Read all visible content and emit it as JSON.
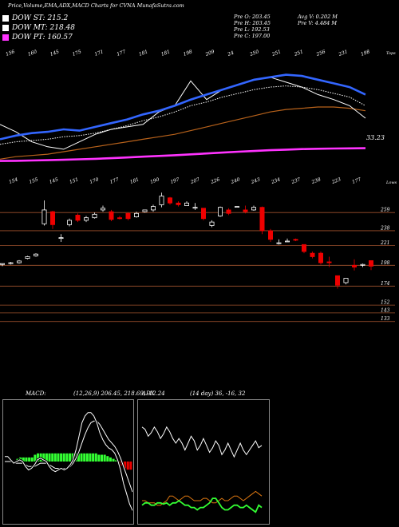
{
  "header": {
    "title": "Price,Volume,EMA,ADX,MACD Charts for CVNA MunafaSutra.com"
  },
  "legend": [
    {
      "label": "DOW ST: 215.2",
      "color": "#ffffff"
    },
    {
      "label": "DOW MT: 218.48",
      "color": "#ffffff"
    },
    {
      "label": "DOW PT: 160.57",
      "color": "#ff33ff"
    }
  ],
  "info": {
    "col1": [
      "Pre O: 203.45",
      "Pre H: 203.45",
      "Pre L: 192.53",
      "Pre C: 197.00"
    ],
    "col2": [
      "Avg V: 0.202 M",
      "Pre V: 4.484 M"
    ]
  },
  "colors": {
    "ema_short": "#3366ff",
    "ema_mid": "#ffffff",
    "ema_long": "#ff33ff",
    "ema_brown": "#b8621b",
    "up_candle": "#ffffff",
    "down_candle": "#ee0000",
    "level_line": "#a0522d",
    "macd_bar": "#33ff33",
    "adx_white": "#ffffff",
    "adx_green": "#33ff33",
    "adx_orange": "#dd7711"
  },
  "chart_data": [
    {
      "type": "line",
      "name": "ema-panel",
      "top_labels": [
        "156",
        "160",
        "145",
        "175",
        "171",
        "177",
        "181",
        "181",
        "198",
        "209",
        "24",
        "250",
        "251",
        "251",
        "256",
        "231",
        "198"
      ],
      "top_right_label": "Tops",
      "bottom_labels": [
        "154",
        "155",
        "145",
        "151",
        "170",
        "177",
        "181",
        "190",
        "197",
        "207",
        "226",
        "240",
        "243",
        "234",
        "237",
        "238",
        "223",
        "177"
      ],
      "bottom_right_label": "Lows",
      "last_value_label": "33.23",
      "series": [
        {
          "key": "blue",
          "values": [
            178,
            181,
            183,
            184,
            186,
            185,
            188,
            191,
            194,
            198,
            201,
            205,
            210,
            214,
            218,
            222,
            226,
            228,
            230,
            229,
            226,
            223,
            220,
            214
          ]
        },
        {
          "key": "white_dotted",
          "values": [
            174,
            176,
            177,
            178,
            180,
            181,
            183,
            186,
            189,
            193,
            196,
            200,
            205,
            208,
            212,
            215,
            218,
            220,
            221,
            220,
            218,
            215,
            212,
            205
          ]
        },
        {
          "key": "white",
          "values": [
            190,
            184,
            176,
            172,
            170,
            176,
            182,
            186,
            188,
            190,
            200,
            205,
            225,
            210,
            218,
            222,
            226,
            228,
            224,
            220,
            214,
            210,
            205,
            195
          ]
        },
        {
          "key": "brown",
          "values": [
            162,
            164,
            165,
            166,
            168,
            170,
            172,
            174,
            176,
            178,
            180,
            182,
            185,
            188,
            191,
            194,
            197,
            200,
            202,
            203,
            204,
            204,
            203,
            201
          ]
        },
        {
          "key": "magenta",
          "values": [
            160.57,
            160.7,
            160.9,
            161.2,
            161.5,
            161.9,
            162.3,
            162.8,
            163.4,
            164.0,
            164.6,
            165.2,
            165.9,
            166.6,
            167.3,
            168.0,
            168.6,
            169.2,
            169.7,
            170.1,
            170.4,
            170.6,
            170.7,
            170.8
          ]
        }
      ],
      "ylim": [
        150,
        240
      ]
    },
    {
      "type": "candlestick",
      "name": "price-panel",
      "levels": [
        259,
        238,
        221,
        198,
        174,
        152,
        143,
        133
      ],
      "candles": [
        {
          "o": 199,
          "c": 200,
          "h": 200,
          "l": 197
        },
        {
          "o": 200,
          "c": 201,
          "h": 202,
          "l": 199
        },
        {
          "o": 201,
          "c": 203,
          "h": 204,
          "l": 200
        },
        {
          "o": 206,
          "c": 208,
          "h": 209,
          "l": 205
        },
        {
          "o": 209,
          "c": 211,
          "h": 212,
          "l": 208
        },
        {
          "o": 246,
          "c": 262,
          "h": 273,
          "l": 244
        },
        {
          "o": 260,
          "c": 245,
          "h": 261,
          "l": 240
        },
        {
          "o": 230,
          "c": 230,
          "h": 234,
          "l": 225
        },
        {
          "o": 245,
          "c": 250,
          "h": 252,
          "l": 243
        },
        {
          "o": 256,
          "c": 250,
          "h": 258,
          "l": 248
        },
        {
          "o": 250,
          "c": 253,
          "h": 255,
          "l": 248
        },
        {
          "o": 253,
          "c": 257,
          "h": 259,
          "l": 252
        },
        {
          "o": 262,
          "c": 264,
          "h": 267,
          "l": 260
        },
        {
          "o": 260,
          "c": 251,
          "h": 262,
          "l": 249
        },
        {
          "o": 253,
          "c": 252,
          "h": 255,
          "l": 251
        },
        {
          "o": 258,
          "c": 252,
          "h": 259,
          "l": 250
        },
        {
          "o": 254,
          "c": 258,
          "h": 260,
          "l": 253
        },
        {
          "o": 260,
          "c": 262,
          "h": 262,
          "l": 259
        },
        {
          "o": 262,
          "c": 266,
          "h": 268,
          "l": 260
        },
        {
          "o": 268,
          "c": 278,
          "h": 282,
          "l": 265
        },
        {
          "o": 276,
          "c": 270,
          "h": 277,
          "l": 268
        },
        {
          "o": 270,
          "c": 268,
          "h": 272,
          "l": 266
        },
        {
          "o": 267,
          "c": 270,
          "h": 272,
          "l": 267
        },
        {
          "o": 265,
          "c": 265,
          "h": 270,
          "l": 262
        },
        {
          "o": 264,
          "c": 252,
          "h": 264,
          "l": 250
        },
        {
          "o": 244,
          "c": 248,
          "h": 250,
          "l": 242
        },
        {
          "o": 255,
          "c": 265,
          "h": 266,
          "l": 254
        },
        {
          "o": 262,
          "c": 258,
          "h": 264,
          "l": 256
        },
        {
          "o": 266,
          "c": 266,
          "h": 266,
          "l": 266
        },
        {
          "o": 262,
          "c": 260,
          "h": 267,
          "l": 258
        },
        {
          "o": 262,
          "c": 265,
          "h": 267,
          "l": 261
        },
        {
          "o": 265,
          "c": 238,
          "h": 266,
          "l": 234
        },
        {
          "o": 238,
          "c": 228,
          "h": 240,
          "l": 225
        },
        {
          "o": 224,
          "c": 224,
          "h": 228,
          "l": 222
        },
        {
          "o": 226,
          "c": 226,
          "h": 229,
          "l": 225
        },
        {
          "o": 228,
          "c": 227,
          "h": 229,
          "l": 226
        },
        {
          "o": 222,
          "c": 214,
          "h": 222,
          "l": 212
        },
        {
          "o": 212,
          "c": 208,
          "h": 214,
          "l": 206
        },
        {
          "o": 212,
          "c": 201,
          "h": 214,
          "l": 199
        },
        {
          "o": 202,
          "c": 201,
          "h": 208,
          "l": 196
        },
        {
          "o": 186,
          "c": 175,
          "h": 186,
          "l": 171
        },
        {
          "o": 178,
          "c": 183,
          "h": 183,
          "l": 176
        },
        {
          "o": 198,
          "c": 196,
          "h": 205,
          "l": 192
        },
        {
          "o": 198,
          "c": 199,
          "h": 200,
          "l": 196
        },
        {
          "o": 203.45,
          "c": 197.0,
          "h": 203.45,
          "l": 192.53
        }
      ],
      "ylim": [
        130,
        285
      ]
    },
    {
      "type": "bar",
      "name": "macd-panel",
      "label": "MACD:",
      "values_text": "(12,26,9) 206.45, 218.69, -12.24",
      "histogram": [
        0,
        0,
        0,
        0,
        2,
        3,
        3,
        3,
        3,
        3,
        5,
        6,
        6,
        6,
        6,
        6,
        6,
        6,
        6,
        6,
        6,
        6,
        6,
        6,
        6,
        6,
        6,
        6,
        6,
        6,
        6,
        6,
        5,
        5,
        5,
        4,
        3,
        2,
        1,
        -1,
        -3,
        -5,
        -6,
        -6
      ],
      "macd": [
        88,
        88,
        86,
        84,
        85,
        86,
        85,
        82,
        80,
        81,
        83,
        86,
        87,
        86,
        85,
        82,
        80,
        79,
        80,
        81,
        80,
        81,
        83,
        86,
        92,
        100,
        108,
        112,
        114,
        114,
        112,
        108,
        102,
        98,
        95,
        93,
        92,
        90,
        86,
        80,
        72,
        66,
        60,
        56
      ],
      "signal": [
        85,
        85,
        85,
        84,
        84,
        84,
        84,
        83,
        82,
        82,
        82,
        83,
        84,
        84,
        84,
        83,
        82,
        81,
        81,
        81,
        81,
        81,
        82,
        84,
        87,
        91,
        96,
        101,
        105,
        108,
        109,
        109,
        107,
        104,
        101,
        98,
        96,
        94,
        91,
        87,
        82,
        77,
        72,
        67
      ],
      "ylim": [
        50,
        120
      ]
    },
    {
      "type": "line",
      "name": "adx-panel",
      "label": "ADX",
      "values_text": "(14 day) 36, -16, 32",
      "series": [
        {
          "key": "white",
          "values": [
            20,
            22,
            28,
            25,
            20,
            24,
            30,
            26,
            20,
            24,
            30,
            34,
            30,
            34,
            40,
            34,
            28,
            32,
            40,
            36,
            30,
            36,
            42,
            38,
            32,
            36,
            44,
            40,
            34,
            40,
            46,
            40,
            34,
            40,
            44,
            40,
            36,
            32,
            38,
            36
          ]
        },
        {
          "key": "green",
          "values": [
            88,
            86,
            86,
            88,
            88,
            86,
            86,
            87,
            86,
            88,
            86,
            86,
            84,
            86,
            88,
            88,
            90,
            90,
            92,
            90,
            90,
            88,
            86,
            82,
            82,
            86,
            90,
            92,
            92,
            90,
            88,
            88,
            90,
            90,
            88,
            90,
            92,
            94,
            88,
            90
          ]
        },
        {
          "key": "orange",
          "values": [
            84,
            84,
            86,
            86,
            86,
            88,
            88,
            86,
            84,
            80,
            80,
            82,
            84,
            82,
            80,
            80,
            82,
            84,
            84,
            84,
            82,
            82,
            84,
            86,
            86,
            84,
            82,
            84,
            84,
            82,
            80,
            80,
            82,
            84,
            82,
            80,
            78,
            76,
            78,
            80
          ]
        }
      ],
      "ylim": [
        0,
        100
      ]
    }
  ]
}
